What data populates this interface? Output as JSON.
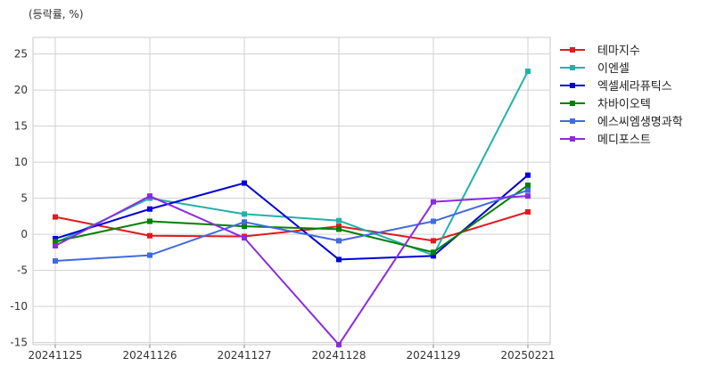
{
  "chart_data": {
    "type": "line",
    "title": "",
    "subtitle": "(등락률, %)",
    "xlabel": "",
    "ylabel": "",
    "x": [
      "20241125",
      "20241126",
      "20241127",
      "20241128",
      "20241129",
      "20250221"
    ],
    "ylim": [
      -15.3,
      27.3
    ],
    "yticks": [
      -15,
      -10,
      -5,
      0,
      5,
      10,
      15,
      20,
      25
    ],
    "grid": true,
    "legend": "right",
    "series": [
      {
        "name": "테마지수",
        "color": "#e31a1c",
        "values": [
          2.4,
          -0.2,
          -0.3,
          1.1,
          -0.9,
          3.1
        ]
      },
      {
        "name": "이엔셀",
        "color": "#20b2aa",
        "values": [
          -1.2,
          5.0,
          2.8,
          1.9,
          -2.9,
          22.6
        ]
      },
      {
        "name": "엑셀세라퓨틱스",
        "color": "#0000d8",
        "values": [
          -0.6,
          3.5,
          7.1,
          -3.5,
          -3.0,
          8.2
        ]
      },
      {
        "name": "차바이오텍",
        "color": "#008000",
        "values": [
          -1.0,
          1.8,
          1.1,
          0.7,
          -2.5,
          6.8
        ]
      },
      {
        "name": "에스씨엠생명과학",
        "color": "#4169e1",
        "values": [
          -3.7,
          -2.9,
          1.7,
          -0.9,
          1.8,
          6.1
        ]
      },
      {
        "name": "메디포스트",
        "color": "#8a2be2",
        "values": [
          -1.6,
          5.3,
          -0.5,
          -15.3,
          4.5,
          5.3
        ]
      }
    ]
  }
}
